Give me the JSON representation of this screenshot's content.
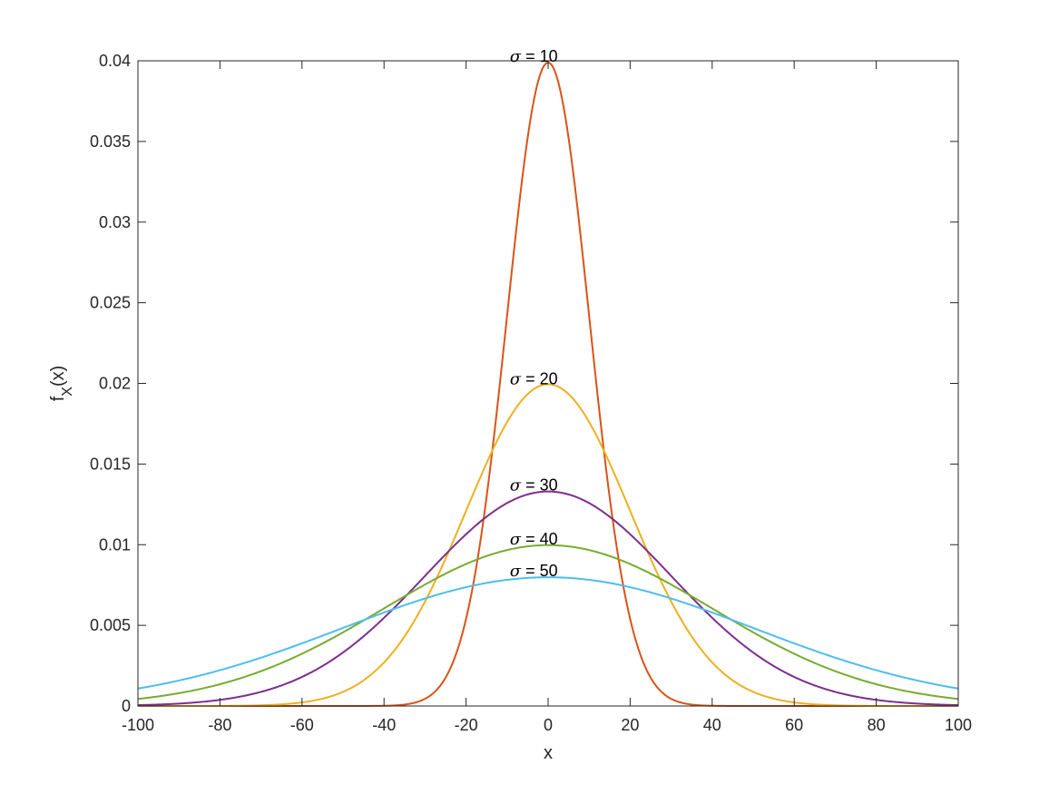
{
  "chart_data": {
    "type": "line",
    "title": "",
    "xlabel": "x",
    "ylabel": {
      "main": "f",
      "sub": "X",
      "rest": "(x)"
    },
    "xlim": [
      -100,
      100
    ],
    "ylim": [
      0,
      0.04
    ],
    "x_ticks": [
      -100,
      -80,
      -60,
      -40,
      -20,
      0,
      20,
      40,
      60,
      80,
      100
    ],
    "x_tick_labels": [
      "-100",
      "-80",
      "-60",
      "-40",
      "-20",
      "0",
      "20",
      "40",
      "60",
      "80",
      "100"
    ],
    "y_ticks": [
      0,
      0.005,
      0.01,
      0.015,
      0.02,
      0.025,
      0.03,
      0.035,
      0.04
    ],
    "y_tick_labels": [
      "0",
      "0.005",
      "0.01",
      "0.015",
      "0.02",
      "0.025",
      "0.03",
      "0.035",
      "0.04"
    ],
    "grid": false,
    "legend": "none",
    "x_samples": [
      -100,
      -90,
      -80,
      -70,
      -60,
      -50,
      -40,
      -35,
      -30,
      -25,
      -20,
      -15,
      -10,
      -5,
      0,
      5,
      10,
      15,
      20,
      25,
      30,
      35,
      40,
      50,
      60,
      70,
      80,
      90,
      100
    ],
    "series": [
      {
        "sigma": 10,
        "color": "#D95319",
        "annotation": {
          "symbol": "σ",
          "text": " =  10",
          "x": -10,
          "y": 0.0399
        },
        "values": [
          0,
          0,
          0,
          0,
          0,
          0,
          1.34e-05,
          8.73e-05,
          0.000443,
          0.00175,
          0.0054,
          0.01295,
          0.0242,
          0.0352,
          0.0399,
          0.0352,
          0.0242,
          0.01295,
          0.0054,
          0.00175,
          0.000443,
          8.73e-05,
          1.34e-05,
          0,
          0,
          0,
          0,
          0,
          0
        ]
      },
      {
        "sigma": 20,
        "color": "#EDB120",
        "annotation": {
          "symbol": "σ",
          "text": " =  20",
          "x": -10,
          "y": 0.0199
        },
        "values": [
          7.43e-05,
          0.0002,
          0.000669,
          0.00173,
          0.00222,
          0.00088,
          0.0027,
          0.00428,
          0.00648,
          0.00913,
          0.0121,
          0.0151,
          0.0176,
          0.0193,
          0.0199,
          0.0193,
          0.0176,
          0.0151,
          0.0121,
          0.00913,
          0.00648,
          0.00428,
          0.0027,
          0.00088,
          0.00222,
          0.00173,
          0.000669,
          0.0002,
          7.43e-05
        ]
      },
      {
        "sigma": 30,
        "color": "#7E2F8E",
        "annotation": {
          "symbol": "σ",
          "text": " =  30",
          "x": -10,
          "y": 0.0133
        },
        "values": [
          5.1e-05,
          0.000148,
          0.00038,
          0.000868,
          0.0018,
          0.00333,
          0.00547,
          0.00673,
          0.00807,
          0.00942,
          0.0107,
          0.0117,
          0.0126,
          0.0131,
          0.0133,
          0.0131,
          0.0126,
          0.0117,
          0.0107,
          0.00942,
          0.00807,
          0.00673,
          0.00547,
          0.00333,
          0.0018,
          0.000868,
          0.00038,
          0.000148,
          5.1e-05
        ]
      },
      {
        "sigma": 40,
        "color": "#77AC30",
        "annotation": {
          "symbol": "σ",
          "text": " =  40",
          "x": -10,
          "y": 0.00997
        },
        "values": [
          0.000438,
          0.000795,
          0.00135,
          0.00216,
          0.00324,
          0.00457,
          0.00605,
          0.00682,
          0.00753,
          0.0082,
          0.0088,
          0.0093,
          0.00967,
          0.00989,
          0.00997,
          0.00989,
          0.00967,
          0.0093,
          0.0088,
          0.0082,
          0.00753,
          0.00682,
          0.00605,
          0.00457,
          0.00324,
          0.00216,
          0.00135,
          0.000795,
          0.000438
        ]
      },
      {
        "sigma": 50,
        "color": "#4DBEEE",
        "annotation": {
          "symbol": "σ",
          "text": " =  50",
          "x": -10,
          "y": 0.00798
        },
        "values": [
          0.00108,
          0.00158,
          0.00222,
          0.00299,
          0.00389,
          0.00484,
          0.00579,
          0.00624,
          0.00666,
          0.00704,
          0.00737,
          0.00764,
          0.00782,
          0.00794,
          0.00798,
          0.00794,
          0.00782,
          0.00764,
          0.00737,
          0.00704,
          0.00666,
          0.00624,
          0.00579,
          0.00484,
          0.00389,
          0.00299,
          0.00222,
          0.00158,
          0.00108
        ]
      }
    ]
  }
}
